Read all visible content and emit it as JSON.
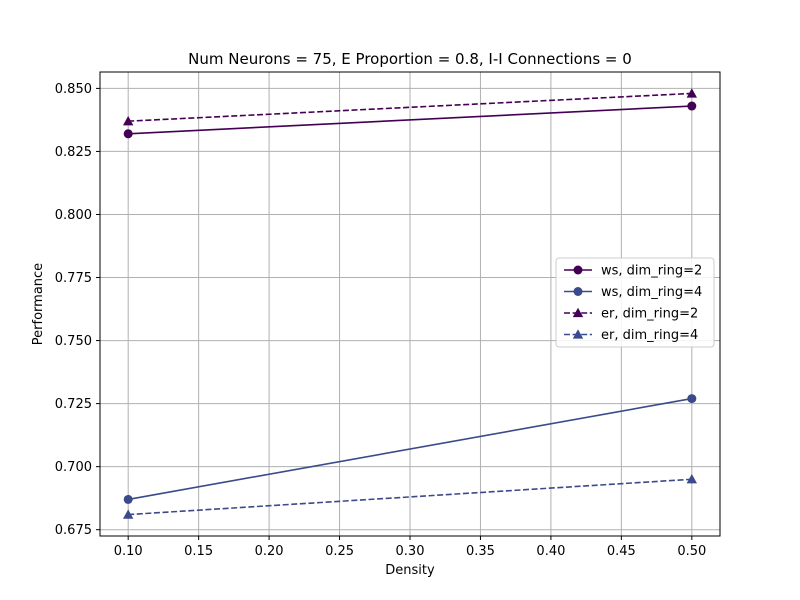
{
  "chart_data": {
    "type": "line",
    "title": "Num Neurons = 75, E Proportion = 0.8, I-I Connections = 0",
    "xlabel": "Density",
    "ylabel": "Performance",
    "xlim": [
      0.08,
      0.52
    ],
    "ylim": [
      0.6725,
      0.8565
    ],
    "xticks": [
      0.1,
      0.15,
      0.2,
      0.25,
      0.3,
      0.35,
      0.4,
      0.45,
      0.5
    ],
    "xtick_labels": [
      "0.10",
      "0.15",
      "0.20",
      "0.25",
      "0.30",
      "0.35",
      "0.40",
      "0.45",
      "0.50"
    ],
    "yticks": [
      0.675,
      0.7,
      0.725,
      0.75,
      0.775,
      0.8,
      0.825,
      0.85
    ],
    "ytick_labels": [
      "0.675",
      "0.700",
      "0.725",
      "0.750",
      "0.775",
      "0.800",
      "0.825",
      "0.850"
    ],
    "grid": true,
    "legend_position": "center-right",
    "series": [
      {
        "name": "ws, dim_ring=2",
        "color": "#440154",
        "linestyle": "solid",
        "marker": "circle",
        "x": [
          0.1,
          0.5
        ],
        "y": [
          0.832,
          0.843
        ]
      },
      {
        "name": "ws, dim_ring=4",
        "color": "#3b4a8a",
        "linestyle": "solid",
        "marker": "circle",
        "x": [
          0.1,
          0.5
        ],
        "y": [
          0.687,
          0.727
        ]
      },
      {
        "name": "er, dim_ring=2",
        "color": "#440154",
        "linestyle": "dashed",
        "marker": "triangle",
        "x": [
          0.1,
          0.5
        ],
        "y": [
          0.837,
          0.848
        ]
      },
      {
        "name": "er, dim_ring=4",
        "color": "#3b4a8a",
        "linestyle": "dashed",
        "marker": "triangle",
        "x": [
          0.1,
          0.5
        ],
        "y": [
          0.681,
          0.695
        ]
      }
    ]
  }
}
